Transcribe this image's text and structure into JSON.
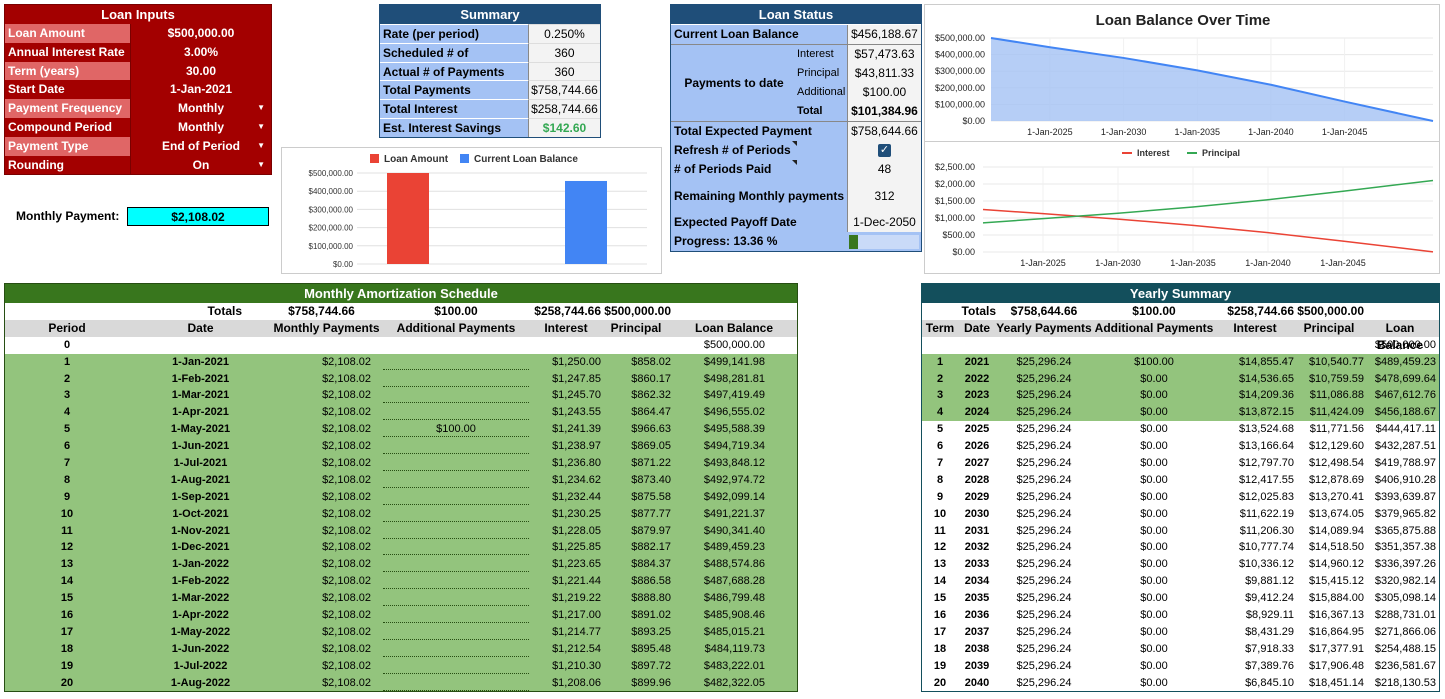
{
  "loan_inputs": {
    "title": "Loan Inputs",
    "rows": [
      {
        "label": "Loan Amount",
        "value": "$500,000.00",
        "dropdown": false
      },
      {
        "label": "Annual Interest Rate",
        "value": "3.00%",
        "dropdown": false
      },
      {
        "label": "Term (years)",
        "value": "30.00",
        "dropdown": false
      },
      {
        "label": "Start Date",
        "value": "1-Jan-2021",
        "dropdown": false
      },
      {
        "label": "Payment Frequency",
        "value": "Monthly",
        "dropdown": true
      },
      {
        "label": "Compound Period",
        "value": "Monthly",
        "dropdown": true
      },
      {
        "label": "Payment Type",
        "value": "End of Period",
        "dropdown": true
      },
      {
        "label": "Rounding",
        "value": "On",
        "dropdown": true
      }
    ]
  },
  "monthly_payment": {
    "label": "Monthly Payment:",
    "value": "$2,108.02"
  },
  "summary": {
    "title": "Summary",
    "rows": [
      {
        "label": "Rate (per period)",
        "value": "0.250%"
      },
      {
        "label": "Scheduled # of Payments",
        "value": "360"
      },
      {
        "label": "Actual # of Payments",
        "value": "360"
      },
      {
        "label": "Total Payments",
        "value": "$758,744.66"
      },
      {
        "label": "Total Interest",
        "value": "$258,744.66"
      },
      {
        "label": "Est. Interest Savings",
        "value": "$142.60"
      }
    ]
  },
  "loan_status": {
    "title": "Loan Status",
    "current_balance_label": "Current Loan Balance",
    "current_balance": "$456,188.67",
    "payments_to_date_label": "Payments to date",
    "ptd": [
      {
        "label": "Interest",
        "value": "$57,473.63"
      },
      {
        "label": "Principal",
        "value": "$43,811.33"
      },
      {
        "label": "Additional",
        "value": "$100.00"
      },
      {
        "label": "Total",
        "value": "$101,384.96"
      }
    ],
    "total_expected_label": "Total Expected Payment",
    "total_expected": "$758,644.66",
    "refresh_label": "Refresh # of Periods",
    "periods_paid_label": "# of Periods Paid",
    "periods_paid": "48",
    "remaining_label": "Remaining Monthly payments",
    "remaining": "312",
    "payoff_label": "Expected Payoff Date",
    "payoff": "1-Dec-2050",
    "progress_label": "Progress: 13.36 %",
    "progress": 0.1336
  },
  "colors": {
    "loan_amount": "#ea4335",
    "current_balance": "#4285f4",
    "interest": "#ea4335",
    "principal": "#34a853"
  },
  "chart_data": [
    {
      "type": "bar",
      "categories": [
        ""
      ],
      "series": [
        {
          "name": "Loan Amount",
          "values": [
            500000
          ]
        },
        {
          "name": "Current Loan Balance",
          "values": [
            456188.67
          ]
        }
      ],
      "ylim": [
        0,
        500000
      ],
      "yticks": [
        "$500,000.00",
        "$400,000.00",
        "$300,000.00",
        "$200,000.00",
        "$100,000.00",
        "$0.00"
      ],
      "legend": "top"
    },
    {
      "type": "area",
      "title": "Loan Balance Over Time",
      "x": [
        2021,
        2025,
        2030,
        2035,
        2040,
        2045,
        2051
      ],
      "values": [
        500000,
        444417,
        379966,
        305098,
        218131,
        117000,
        0
      ],
      "ylim": [
        0,
        500000
      ],
      "yticks": [
        "$500,000.00",
        "$400,000.00",
        "$300,000.00",
        "$200,000.00",
        "$100,000.00",
        "$0.00"
      ],
      "xticks": [
        "1-Jan-2025",
        "1-Jan-2030",
        "1-Jan-2035",
        "1-Jan-2040",
        "1-Jan-2045"
      ]
    },
    {
      "type": "line",
      "series": [
        {
          "name": "Interest",
          "x": [
            2021,
            2025,
            2030,
            2035,
            2040,
            2045,
            2051
          ],
          "values": [
            1250,
            1127,
            968,
            784,
            570,
            320,
            5
          ]
        },
        {
          "name": "Principal",
          "x": [
            2021,
            2025,
            2030,
            2035,
            2040,
            2045,
            2051
          ],
          "values": [
            858,
            981,
            1140,
            1324,
            1538,
            1788,
            2103
          ]
        }
      ],
      "ylim": [
        0,
        2500
      ],
      "yticks": [
        "$2,500.00",
        "$2,000.00",
        "$1,500.00",
        "$1,000.00",
        "$500.00",
        "$0.00"
      ],
      "xticks": [
        "1-Jan-2025",
        "1-Jan-2030",
        "1-Jan-2035",
        "1-Jan-2040",
        "1-Jan-2045"
      ],
      "legend": "top"
    }
  ],
  "amortization": {
    "title": "Monthly Amortization Schedule",
    "totals": {
      "label": "Totals",
      "payments": "$758,744.66",
      "additional": "$100.00",
      "interest": "$258,744.66",
      "principal": "$500,000.00"
    },
    "headers": [
      "Period",
      "Date",
      "Monthly Payments",
      "Additional Payments",
      "Interest",
      "Principal",
      "Loan Balance"
    ],
    "row0": {
      "period": "0",
      "balance": "$500,000.00"
    },
    "rows": [
      [
        "1",
        "1-Jan-2021",
        "$2,108.02",
        "",
        "$1,250.00",
        "$858.02",
        "$499,141.98"
      ],
      [
        "2",
        "1-Feb-2021",
        "$2,108.02",
        "",
        "$1,247.85",
        "$860.17",
        "$498,281.81"
      ],
      [
        "3",
        "1-Mar-2021",
        "$2,108.02",
        "",
        "$1,245.70",
        "$862.32",
        "$497,419.49"
      ],
      [
        "4",
        "1-Apr-2021",
        "$2,108.02",
        "",
        "$1,243.55",
        "$864.47",
        "$496,555.02"
      ],
      [
        "5",
        "1-May-2021",
        "$2,108.02",
        "$100.00",
        "$1,241.39",
        "$966.63",
        "$495,588.39"
      ],
      [
        "6",
        "1-Jun-2021",
        "$2,108.02",
        "",
        "$1,238.97",
        "$869.05",
        "$494,719.34"
      ],
      [
        "7",
        "1-Jul-2021",
        "$2,108.02",
        "",
        "$1,236.80",
        "$871.22",
        "$493,848.12"
      ],
      [
        "8",
        "1-Aug-2021",
        "$2,108.02",
        "",
        "$1,234.62",
        "$873.40",
        "$492,974.72"
      ],
      [
        "9",
        "1-Sep-2021",
        "$2,108.02",
        "",
        "$1,232.44",
        "$875.58",
        "$492,099.14"
      ],
      [
        "10",
        "1-Oct-2021",
        "$2,108.02",
        "",
        "$1,230.25",
        "$877.77",
        "$491,221.37"
      ],
      [
        "11",
        "1-Nov-2021",
        "$2,108.02",
        "",
        "$1,228.05",
        "$879.97",
        "$490,341.40"
      ],
      [
        "12",
        "1-Dec-2021",
        "$2,108.02",
        "",
        "$1,225.85",
        "$882.17",
        "$489,459.23"
      ],
      [
        "13",
        "1-Jan-2022",
        "$2,108.02",
        "",
        "$1,223.65",
        "$884.37",
        "$488,574.86"
      ],
      [
        "14",
        "1-Feb-2022",
        "$2,108.02",
        "",
        "$1,221.44",
        "$886.58",
        "$487,688.28"
      ],
      [
        "15",
        "1-Mar-2022",
        "$2,108.02",
        "",
        "$1,219.22",
        "$888.80",
        "$486,799.48"
      ],
      [
        "16",
        "1-Apr-2022",
        "$2,108.02",
        "",
        "$1,217.00",
        "$891.02",
        "$485,908.46"
      ],
      [
        "17",
        "1-May-2022",
        "$2,108.02",
        "",
        "$1,214.77",
        "$893.25",
        "$485,015.21"
      ],
      [
        "18",
        "1-Jun-2022",
        "$2,108.02",
        "",
        "$1,212.54",
        "$895.48",
        "$484,119.73"
      ],
      [
        "19",
        "1-Jul-2022",
        "$2,108.02",
        "",
        "$1,210.30",
        "$897.72",
        "$483,222.01"
      ],
      [
        "20",
        "1-Aug-2022",
        "$2,108.02",
        "",
        "$1,208.06",
        "$899.96",
        "$482,322.05"
      ]
    ]
  },
  "yearly": {
    "title": "Yearly Summary",
    "totals": {
      "label": "Totals",
      "payments": "$758,644.66",
      "additional": "$100.00",
      "interest": "$258,744.66",
      "principal": "$500,000.00"
    },
    "headers": [
      "Term",
      "Date",
      "Yearly Payments",
      "Additional Payments",
      "Interest",
      "Principal",
      "Loan Balance"
    ],
    "row0": {
      "balance": "$500,000.00"
    },
    "paid_terms": 4,
    "rows": [
      [
        "1",
        "2021",
        "$25,296.24",
        "$100.00",
        "$14,855.47",
        "$10,540.77",
        "$489,459.23"
      ],
      [
        "2",
        "2022",
        "$25,296.24",
        "$0.00",
        "$14,536.65",
        "$10,759.59",
        "$478,699.64"
      ],
      [
        "3",
        "2023",
        "$25,296.24",
        "$0.00",
        "$14,209.36",
        "$11,086.88",
        "$467,612.76"
      ],
      [
        "4",
        "2024",
        "$25,296.24",
        "$0.00",
        "$13,872.15",
        "$11,424.09",
        "$456,188.67"
      ],
      [
        "5",
        "2025",
        "$25,296.24",
        "$0.00",
        "$13,524.68",
        "$11,771.56",
        "$444,417.11"
      ],
      [
        "6",
        "2026",
        "$25,296.24",
        "$0.00",
        "$13,166.64",
        "$12,129.60",
        "$432,287.51"
      ],
      [
        "7",
        "2027",
        "$25,296.24",
        "$0.00",
        "$12,797.70",
        "$12,498.54",
        "$419,788.97"
      ],
      [
        "8",
        "2028",
        "$25,296.24",
        "$0.00",
        "$12,417.55",
        "$12,878.69",
        "$406,910.28"
      ],
      [
        "9",
        "2029",
        "$25,296.24",
        "$0.00",
        "$12,025.83",
        "$13,270.41",
        "$393,639.87"
      ],
      [
        "10",
        "2030",
        "$25,296.24",
        "$0.00",
        "$11,622.19",
        "$13,674.05",
        "$379,965.82"
      ],
      [
        "11",
        "2031",
        "$25,296.24",
        "$0.00",
        "$11,206.30",
        "$14,089.94",
        "$365,875.88"
      ],
      [
        "12",
        "2032",
        "$25,296.24",
        "$0.00",
        "$10,777.74",
        "$14,518.50",
        "$351,357.38"
      ],
      [
        "13",
        "2033",
        "$25,296.24",
        "$0.00",
        "$10,336.12",
        "$14,960.12",
        "$336,397.26"
      ],
      [
        "14",
        "2034",
        "$25,296.24",
        "$0.00",
        "$9,881.12",
        "$15,415.12",
        "$320,982.14"
      ],
      [
        "15",
        "2035",
        "$25,296.24",
        "$0.00",
        "$9,412.24",
        "$15,884.00",
        "$305,098.14"
      ],
      [
        "16",
        "2036",
        "$25,296.24",
        "$0.00",
        "$8,929.11",
        "$16,367.13",
        "$288,731.01"
      ],
      [
        "17",
        "2037",
        "$25,296.24",
        "$0.00",
        "$8,431.29",
        "$16,864.95",
        "$271,866.06"
      ],
      [
        "18",
        "2038",
        "$25,296.24",
        "$0.00",
        "$7,918.33",
        "$17,377.91",
        "$254,488.15"
      ],
      [
        "19",
        "2039",
        "$25,296.24",
        "$0.00",
        "$7,389.76",
        "$17,906.48",
        "$236,581.67"
      ],
      [
        "20",
        "2040",
        "$25,296.24",
        "$0.00",
        "$6,845.10",
        "$18,451.14",
        "$218,130.53"
      ]
    ]
  }
}
